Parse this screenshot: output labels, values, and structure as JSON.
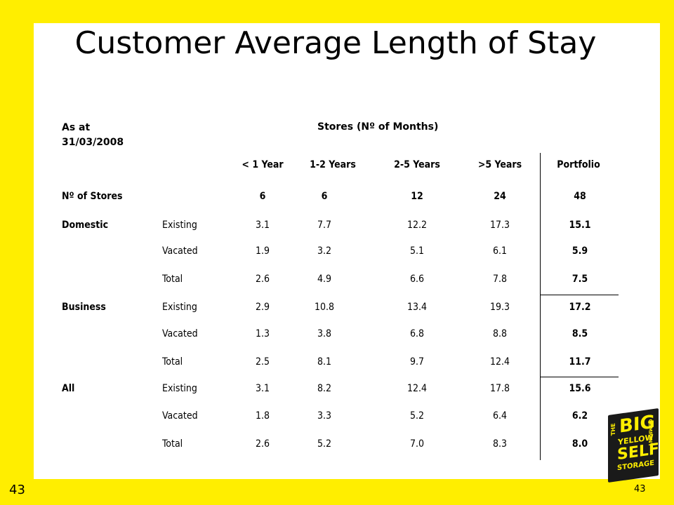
{
  "title": "Customer Average Length of Stay",
  "slide_number": "43",
  "slide_number_small": "43",
  "header": {
    "as_at_line1": "As at",
    "as_at_line2": "31/03/2008",
    "stores_label": "Stores (Nº of Months)"
  },
  "columns": [
    "< 1 Year",
    "1-2 Years",
    "2-5 Years",
    ">5 Years",
    "Portfolio"
  ],
  "num_stores": {
    "label": "Nº of Stores",
    "values": [
      "6",
      "6",
      "12",
      "24",
      "48"
    ]
  },
  "groups": [
    {
      "name": "Domestic",
      "rows": [
        {
          "type": "Existing",
          "values": [
            "3.1",
            "7.7",
            "12.2",
            "17.3",
            "15.1"
          ]
        },
        {
          "type": "Vacated",
          "values": [
            "1.9",
            "3.2",
            "5.1",
            "6.1",
            "5.9"
          ]
        },
        {
          "type": "Total",
          "values": [
            "2.6",
            "4.9",
            "6.6",
            "7.8",
            "7.5"
          ]
        }
      ]
    },
    {
      "name": "Business",
      "rows": [
        {
          "type": "Existing",
          "values": [
            "2.9",
            "10.8",
            "13.4",
            "19.3",
            "17.2"
          ]
        },
        {
          "type": "Vacated",
          "values": [
            "1.3",
            "3.8",
            "6.8",
            "8.8",
            "8.5"
          ]
        },
        {
          "type": "Total",
          "values": [
            "2.5",
            "8.1",
            "9.7",
            "12.4",
            "11.7"
          ]
        }
      ]
    },
    {
      "name": "All",
      "rows": [
        {
          "type": "Existing",
          "values": [
            "3.1",
            "8.2",
            "12.4",
            "17.8",
            "15.6"
          ]
        },
        {
          "type": "Vacated",
          "values": [
            "1.8",
            "3.3",
            "5.2",
            "6.4",
            "6.2"
          ]
        },
        {
          "type": "Total",
          "values": [
            "2.6",
            "5.2",
            "7.0",
            "8.3",
            "8.0"
          ]
        }
      ]
    }
  ],
  "logo": {
    "line1": "THE",
    "line2": "BIG",
    "line3": "YELLOW",
    "line4": "SELF",
    "line5": "STORAGE",
    "line6": "COMPANY"
  },
  "colors": {
    "background": "#ffee00",
    "panel": "#ffffff",
    "logo": "#1a1a1a"
  }
}
